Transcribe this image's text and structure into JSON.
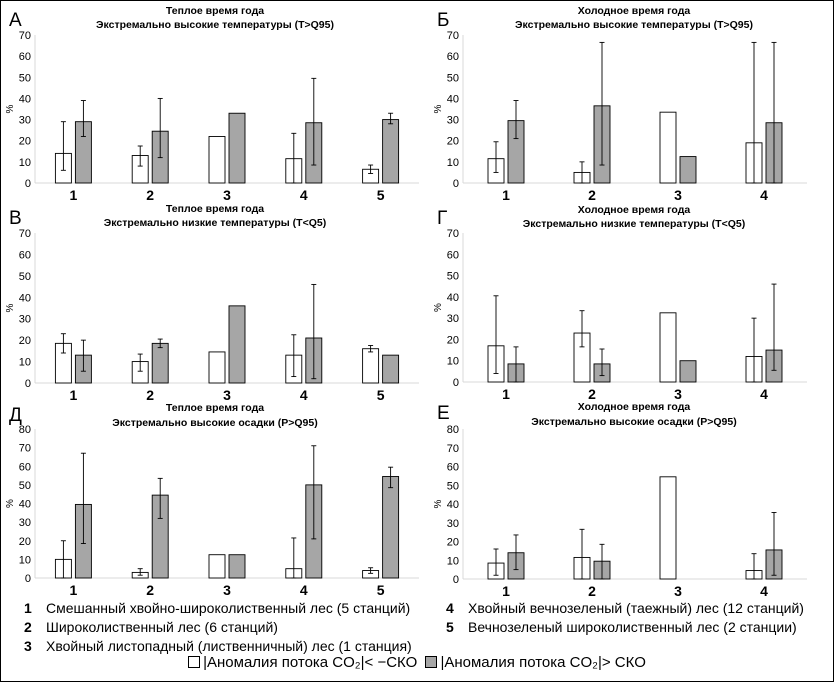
{
  "colors": {
    "series_below": "#ffffff",
    "series_above": "#a6a6a6",
    "axis": "#d9d9d9",
    "bar_stroke": "#000000"
  },
  "chart_data": [
    {
      "type": "bar",
      "panel": "А",
      "title": "Теплое время года",
      "subtitle": "Экстремально высокие температуры (T>Q95)",
      "ylabel": "%",
      "ylim": [
        0,
        70
      ],
      "yticks": [
        0,
        10,
        20,
        30,
        40,
        50,
        60,
        70
      ],
      "categories": [
        "1",
        "2",
        "3",
        "4",
        "5"
      ],
      "series": [
        {
          "values": [
            14,
            13,
            22,
            11.5,
            6.5
          ],
          "err_high": [
            29,
            17.5,
            null,
            23.5,
            8.5
          ],
          "err_low": [
            6,
            8,
            null,
            0,
            4.5
          ]
        },
        {
          "values": [
            29,
            24.5,
            33,
            28.5,
            30
          ],
          "err_high": [
            39,
            40,
            null,
            49.5,
            33
          ],
          "err_low": [
            22,
            12,
            null,
            8.5,
            28
          ]
        }
      ]
    },
    {
      "type": "bar",
      "panel": "Б",
      "title": "Холодное время года",
      "subtitle": "Экстремально высокие температуры (T>Q95)",
      "ylabel": "%",
      "ylim": [
        0,
        70
      ],
      "yticks": [
        0,
        10,
        20,
        30,
        40,
        50,
        60,
        70
      ],
      "categories": [
        "1",
        "2",
        "3",
        "4"
      ],
      "series": [
        {
          "values": [
            11.5,
            5,
            33.5,
            19
          ],
          "err_high": [
            19.5,
            10,
            null,
            66.5
          ],
          "err_low": [
            5,
            0,
            null,
            0
          ]
        },
        {
          "values": [
            29.5,
            36.5,
            12.5,
            28.5
          ],
          "err_high": [
            39,
            66.5,
            null,
            66.5
          ],
          "err_low": [
            21,
            8.5,
            null,
            0
          ]
        }
      ]
    },
    {
      "type": "bar",
      "panel": "В",
      "title": "Теплое время года",
      "subtitle": "Экстремально низкие температуры (T<Q5)",
      "ylabel": "%",
      "ylim": [
        0,
        70
      ],
      "yticks": [
        0,
        10,
        20,
        30,
        40,
        50,
        60,
        70
      ],
      "categories": [
        "1",
        "2",
        "3",
        "4",
        "5"
      ],
      "series": [
        {
          "values": [
            18.5,
            10,
            14.5,
            13,
            16
          ],
          "err_high": [
            23,
            13.5,
            null,
            22.5,
            17.5
          ],
          "err_low": [
            14,
            5.5,
            null,
            3,
            14.5
          ]
        },
        {
          "values": [
            13,
            18.5,
            36,
            21,
            13
          ],
          "err_high": [
            20,
            20.5,
            null,
            46,
            null
          ],
          "err_low": [
            5.5,
            16.5,
            null,
            2,
            null
          ]
        }
      ]
    },
    {
      "type": "bar",
      "panel": "Г",
      "title": "Холодное время года",
      "subtitle": "Экстремально низкие температуры (T<Q5)",
      "ylabel": "%",
      "ylim": [
        0,
        70
      ],
      "yticks": [
        0,
        10,
        20,
        30,
        40,
        50,
        60,
        70
      ],
      "categories": [
        "1",
        "2",
        "3",
        "4"
      ],
      "series": [
        {
          "values": [
            17,
            23,
            32.5,
            12
          ],
          "err_high": [
            40.5,
            33.5,
            null,
            30
          ],
          "err_low": [
            4,
            16.5,
            null,
            0
          ]
        },
        {
          "values": [
            8.5,
            8.5,
            10,
            15
          ],
          "err_high": [
            16.5,
            15.5,
            null,
            46
          ],
          "err_low": [
            0,
            3,
            null,
            5.5
          ]
        }
      ]
    },
    {
      "type": "bar",
      "panel": "Д",
      "title": "Теплое время года",
      "subtitle": "Экстремально высокие осадки (P>Q95)",
      "ylabel": "%",
      "ylim": [
        0,
        80
      ],
      "yticks": [
        0,
        10,
        20,
        30,
        40,
        50,
        60,
        70,
        80
      ],
      "categories": [
        "1",
        "2",
        "3",
        "4",
        "5"
      ],
      "series": [
        {
          "values": [
            10,
            3,
            12.5,
            5,
            4
          ],
          "err_high": [
            20,
            5,
            null,
            21.5,
            5.5
          ],
          "err_low": [
            0,
            1.5,
            null,
            0,
            2.5
          ]
        },
        {
          "values": [
            39.5,
            44.5,
            12.5,
            50,
            54.5
          ],
          "err_high": [
            67,
            53.5,
            null,
            71,
            59.5
          ],
          "err_low": [
            18.5,
            32,
            null,
            21,
            48.5
          ]
        }
      ]
    },
    {
      "type": "bar",
      "panel": "Е",
      "title": "Холодное время года",
      "subtitle": "Экстремально высокие осадки (P>Q95)",
      "ylabel": "%",
      "ylim": [
        0,
        80
      ],
      "yticks": [
        0,
        10,
        20,
        30,
        40,
        50,
        60,
        70,
        80
      ],
      "categories": [
        "1",
        "2",
        "3",
        "4"
      ],
      "series": [
        {
          "values": [
            8.5,
            11.5,
            54.5,
            4.5
          ],
          "err_high": [
            16,
            26.5,
            null,
            13.5
          ],
          "err_low": [
            2,
            0,
            null,
            0
          ]
        },
        {
          "values": [
            14,
            9.5,
            0,
            15.5
          ],
          "err_high": [
            23.5,
            18.5,
            null,
            35.5
          ],
          "err_low": [
            5,
            0,
            null,
            2
          ]
        }
      ]
    }
  ],
  "legend": {
    "items": [
      {
        "num": "1",
        "label": "Смешанный хвойно-широколиственный лес (5 станций)"
      },
      {
        "num": "2",
        "label": "Широколиственный лес (6 станций)"
      },
      {
        "num": "3",
        "label": "Хвойный листопадный (лиственничный) лес (1 станция)"
      },
      {
        "num": "4",
        "label": "Хвойный вечнозеленый (таежный) лес (12 станций)"
      },
      {
        "num": "5",
        "label": "Вечнозеленый широколиственный лес (2 станции)"
      }
    ],
    "series_below": "|Аномалия потока CO₂|< −СКО",
    "series_above": "|Аномалия потока CO₂|> СКО"
  }
}
